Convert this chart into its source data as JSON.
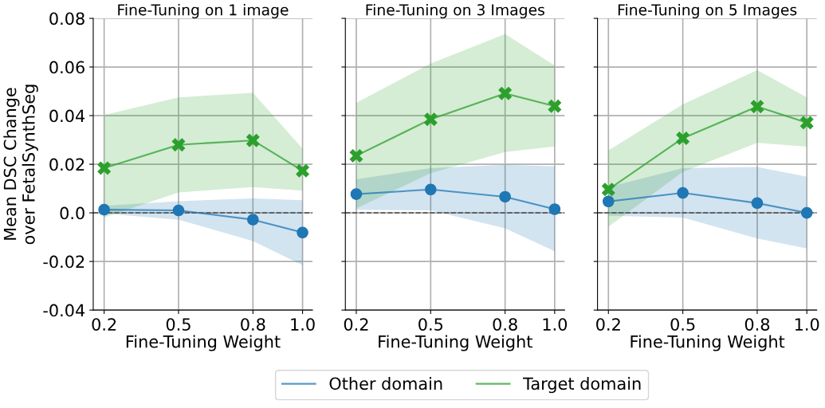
{
  "chart_data": [
    {
      "type": "line",
      "title": "Fine-Tuning on 1 image",
      "xlabel": "Fine-Tuning Weight",
      "ylabel": "Mean DSC Change\nover FetalSynthSeg",
      "x": [
        0.2,
        0.5,
        0.8,
        1.0
      ],
      "xlim": [
        0.156,
        1.04
      ],
      "xticks": [
        {
          "value": 0.2,
          "label": "0.2"
        },
        {
          "value": 0.5,
          "label": "0.5"
        },
        {
          "value": 0.8,
          "label": "0.8"
        },
        {
          "value": 1.0,
          "label": "1.0"
        }
      ],
      "ylim": [
        -0.04,
        0.08
      ],
      "yticks": [
        {
          "value": -0.04,
          "label": "-0.04"
        },
        {
          "value": -0.02,
          "label": "-0.02"
        },
        {
          "value": 0.0,
          "label": "0.0"
        },
        {
          "value": 0.02,
          "label": "0.02"
        },
        {
          "value": 0.04,
          "label": "0.04"
        },
        {
          "value": 0.06,
          "label": "0.06"
        },
        {
          "value": 0.08,
          "label": "0.08"
        }
      ],
      "grid": true,
      "legend": "bottom",
      "ref_lines": [
        {
          "axis": "y",
          "value": 0,
          "color": "#555555",
          "line_style": "dashed"
        }
      ],
      "series": [
        {
          "name": "Other domain",
          "color": "#1f77b4",
          "marker": "circle",
          "values": [
            0.0013,
            0.001,
            -0.0028,
            -0.0081
          ],
          "lower": [
            -0.0003,
            -0.0028,
            -0.0116,
            -0.0215
          ],
          "upper": [
            0.0029,
            0.0048,
            0.0059,
            0.0052
          ]
        },
        {
          "name": "Target domain",
          "color": "#2ca02c",
          "marker": "cross",
          "values": [
            0.0184,
            0.028,
            0.0298,
            0.0173
          ],
          "lower": [
            -0.0019,
            0.0084,
            0.0106,
            0.0091
          ],
          "upper": [
            0.0403,
            0.0475,
            0.0494,
            0.0264
          ]
        }
      ]
    },
    {
      "type": "line",
      "title": "Fine-Tuning on 3 Images",
      "xlabel": "Fine-Tuning Weight",
      "x": [
        0.2,
        0.5,
        0.8,
        1.0
      ],
      "xlim": [
        0.156,
        1.04
      ],
      "xticks": [
        {
          "value": 0.2,
          "label": "0.2"
        },
        {
          "value": 0.5,
          "label": "0.5"
        },
        {
          "value": 0.8,
          "label": "0.8"
        },
        {
          "value": 1.0,
          "label": "1.0"
        }
      ],
      "ylim": [
        -0.04,
        0.08
      ],
      "yticks": [
        -0.04,
        -0.02,
        0.0,
        0.02,
        0.04,
        0.06,
        0.08
      ],
      "tick_labels": "x",
      "grid": true,
      "ref_lines": [
        {
          "axis": "y",
          "value": 0,
          "color": "#555555",
          "line_style": "dashed"
        }
      ],
      "series": [
        {
          "color": "#1f77b4",
          "marker": "circle",
          "values": [
            0.0077,
            0.0096,
            0.0066,
            0.0015
          ],
          "lower": [
            0.0013,
            0.001,
            -0.0064,
            -0.0158
          ],
          "upper": [
            0.0138,
            0.0184,
            0.0198,
            0.0191
          ]
        },
        {
          "color": "#2ca02c",
          "marker": "cross",
          "values": [
            0.0235,
            0.0385,
            0.0491,
            0.0439
          ],
          "lower": [
            0.0018,
            0.0163,
            0.025,
            0.0273
          ],
          "upper": [
            0.0453,
            0.0614,
            0.0735,
            0.0606
          ]
        }
      ]
    },
    {
      "type": "line",
      "title": "Fine-Tuning on 5 Images",
      "xlabel": "Fine-Tuning Weight",
      "x": [
        0.2,
        0.5,
        0.8,
        1.0
      ],
      "xlim": [
        0.156,
        1.04
      ],
      "xticks": [
        {
          "value": 0.2,
          "label": "0.2"
        },
        {
          "value": 0.5,
          "label": "0.5"
        },
        {
          "value": 0.8,
          "label": "0.8"
        },
        {
          "value": 1.0,
          "label": "1.0"
        }
      ],
      "ylim": [
        -0.04,
        0.08
      ],
      "yticks": [
        -0.04,
        -0.02,
        0.0,
        0.02,
        0.04,
        0.06,
        0.08
      ],
      "tick_labels": "x",
      "grid": true,
      "ref_lines": [
        {
          "axis": "y",
          "value": 0,
          "color": "#555555",
          "line_style": "dashed"
        }
      ],
      "series": [
        {
          "color": "#1f77b4",
          "marker": "circle",
          "values": [
            0.0047,
            0.0082,
            0.004,
            0.0
          ],
          "lower": [
            -0.0012,
            -0.0019,
            -0.0105,
            -0.0146
          ],
          "upper": [
            0.0106,
            0.0184,
            0.0189,
            0.0149
          ]
        },
        {
          "color": "#2ca02c",
          "marker": "cross",
          "values": [
            0.0096,
            0.0307,
            0.0437,
            0.0371
          ],
          "lower": [
            -0.0057,
            0.0168,
            0.0288,
            0.0272
          ],
          "upper": [
            0.0257,
            0.0446,
            0.0587,
            0.0475
          ]
        }
      ]
    }
  ]
}
